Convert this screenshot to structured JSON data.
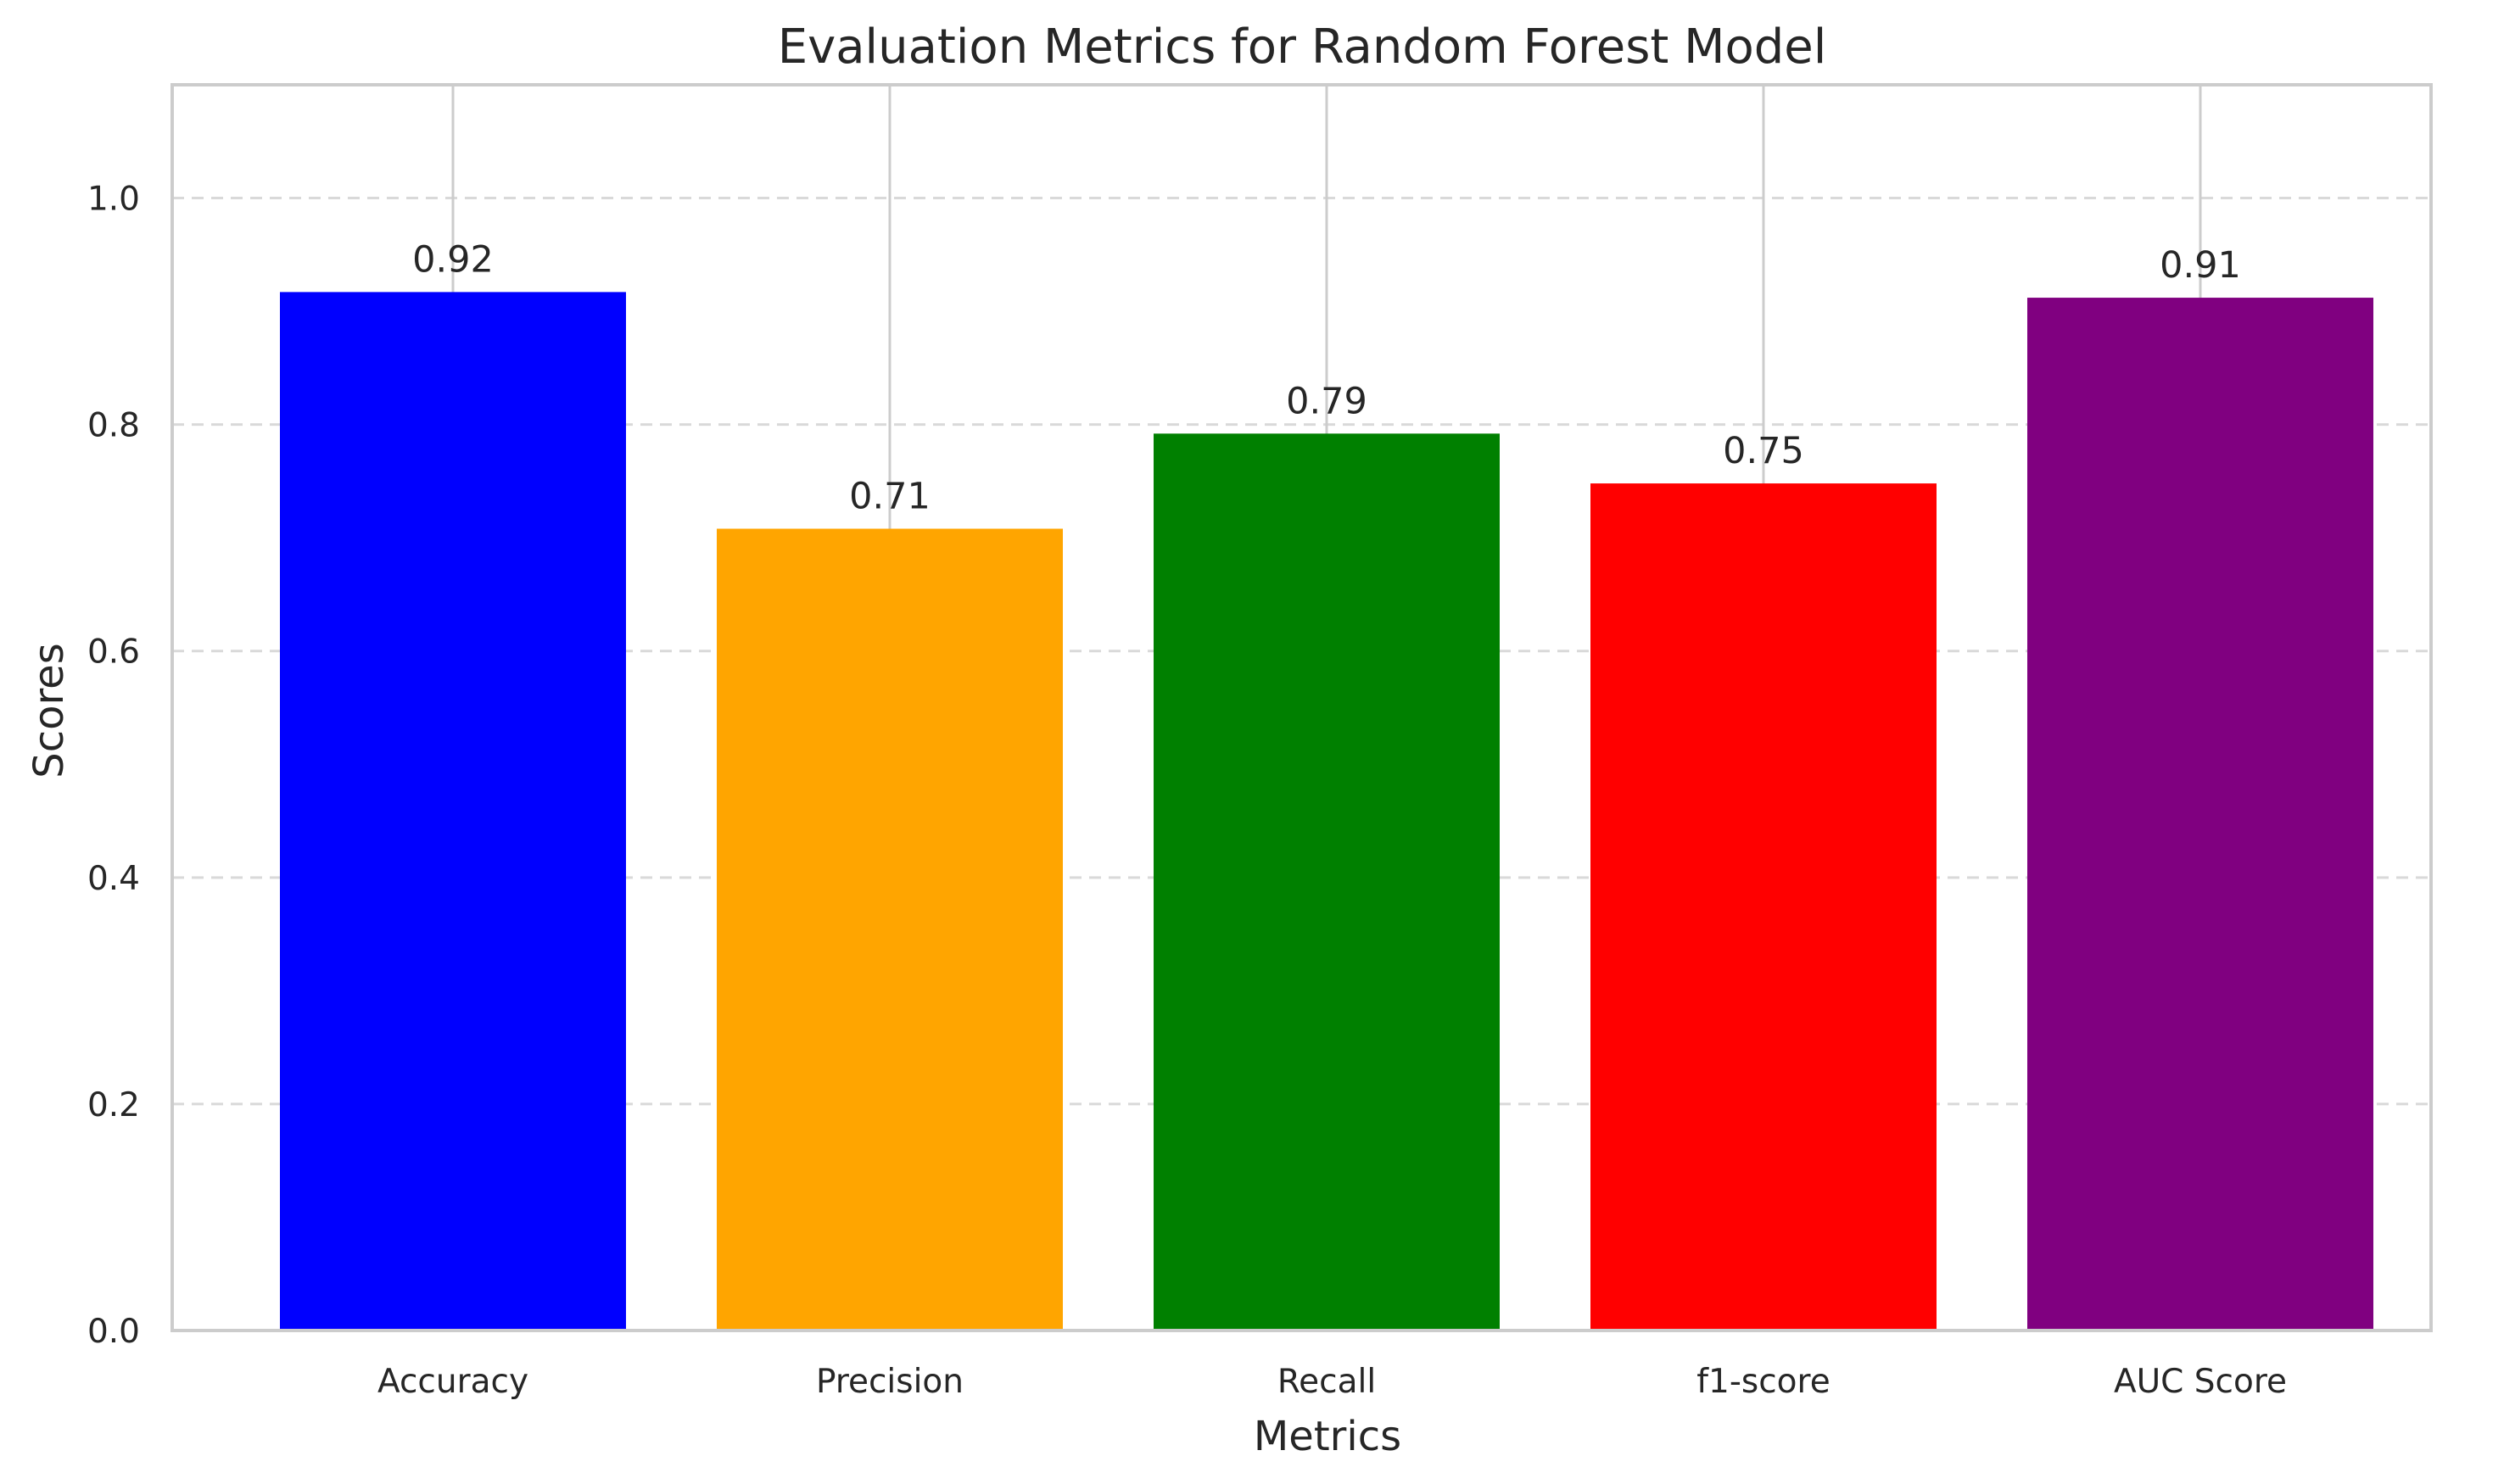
{
  "chart_data": {
    "type": "bar",
    "title": "Evaluation Metrics for Random Forest Model",
    "xlabel": "Metrics",
    "ylabel": "Scores",
    "categories": [
      "Accuracy",
      "Precision",
      "Recall",
      "f1-score",
      "AUC Score"
    ],
    "values": [
      0.917,
      0.708,
      0.792,
      0.748,
      0.912
    ],
    "value_labels": [
      "0.92",
      "0.71",
      "0.79",
      "0.75",
      "0.91"
    ],
    "colors": [
      "#0000ff",
      "#ffa500",
      "#008000",
      "#ff0000",
      "#800080"
    ],
    "ylim": [
      0,
      1.1
    ],
    "yticks": [
      0.0,
      0.2,
      0.4,
      0.6,
      0.8,
      1.0
    ],
    "ytick_labels": [
      "0.0",
      "0.2",
      "0.4",
      "0.6",
      "0.8",
      "1.0"
    ],
    "grid": {
      "horizontal": "dashed",
      "vertical": "solid"
    },
    "legend": "none"
  }
}
